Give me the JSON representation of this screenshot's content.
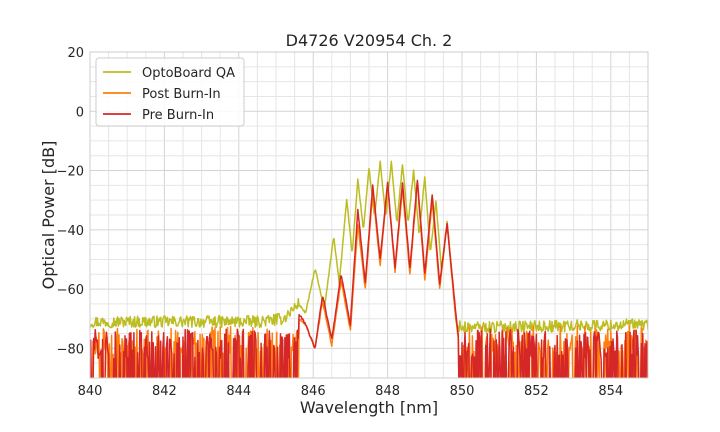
{
  "chart_data": {
    "type": "line",
    "title": "D4726 V20954 Ch. 2",
    "xlabel": "Wavelength [nm]",
    "ylabel": "Optical Power [dB]",
    "xlim": [
      840,
      855
    ],
    "ylim": [
      -90,
      20
    ],
    "xticks": [
      840,
      842,
      844,
      846,
      848,
      850,
      852,
      854
    ],
    "yticks": [
      20,
      0,
      -20,
      -40,
      -60,
      -80
    ],
    "grid": true,
    "legend_position": "top-left",
    "series": [
      {
        "name": "OptoBoard QA",
        "color": "#bcbd22",
        "noise_floor": -72,
        "x": [
          840,
          844.5,
          845.2,
          845.6,
          845.8,
          846.05,
          846.3,
          846.55,
          846.7,
          846.9,
          847.05,
          847.2,
          847.35,
          847.5,
          847.65,
          847.8,
          847.95,
          848.1,
          848.25,
          848.4,
          848.55,
          848.7,
          848.85,
          849.0,
          849.15,
          849.3,
          849.45,
          849.6,
          849.75,
          849.85,
          850.0,
          855
        ],
        "y": [
          -71,
          -71,
          -70,
          -65,
          -68,
          -53,
          -67,
          -42,
          -58,
          -30,
          -48,
          -23,
          -40,
          -19,
          -36,
          -17,
          -36,
          -17,
          -38,
          -18,
          -38,
          -20,
          -42,
          -22,
          -48,
          -30,
          -54,
          -37,
          -58,
          -72,
          -73,
          -72
        ]
      },
      {
        "name": "Post Burn-In",
        "color": "#ff7f0e",
        "noise_floor": -79,
        "x": [
          840,
          844.5,
          845.4,
          845.6,
          845.8,
          846.05,
          846.25,
          846.5,
          846.75,
          847.0,
          847.2,
          847.4,
          847.6,
          847.8,
          848.0,
          848.2,
          848.4,
          848.6,
          848.8,
          849.0,
          849.2,
          849.4,
          849.6,
          849.8,
          849.95,
          855
        ],
        "y": [
          -80,
          -79,
          -79,
          -70,
          -72,
          -80,
          -64,
          -79,
          -57,
          -74,
          -38,
          -60,
          -27,
          -52,
          -25,
          -54,
          -26,
          -55,
          -24,
          -57,
          -30,
          -60,
          -38,
          -66,
          -82,
          -80
        ]
      },
      {
        "name": "Pre Burn-In",
        "color": "#d62728",
        "noise_floor": -80,
        "x": [
          840,
          844.5,
          845.4,
          845.6,
          845.8,
          846.05,
          846.25,
          846.5,
          846.75,
          847.0,
          847.2,
          847.4,
          847.6,
          847.8,
          848.0,
          848.2,
          848.4,
          848.6,
          848.8,
          849.0,
          849.2,
          849.4,
          849.6,
          849.8,
          849.95,
          855
        ],
        "y": [
          -80,
          -80,
          -80,
          -68,
          -72,
          -80,
          -62,
          -77,
          -55,
          -72,
          -33,
          -58,
          -25,
          -50,
          -24,
          -53,
          -24,
          -53,
          -23,
          -55,
          -28,
          -58,
          -38,
          -64,
          -82,
          -80
        ]
      }
    ]
  }
}
